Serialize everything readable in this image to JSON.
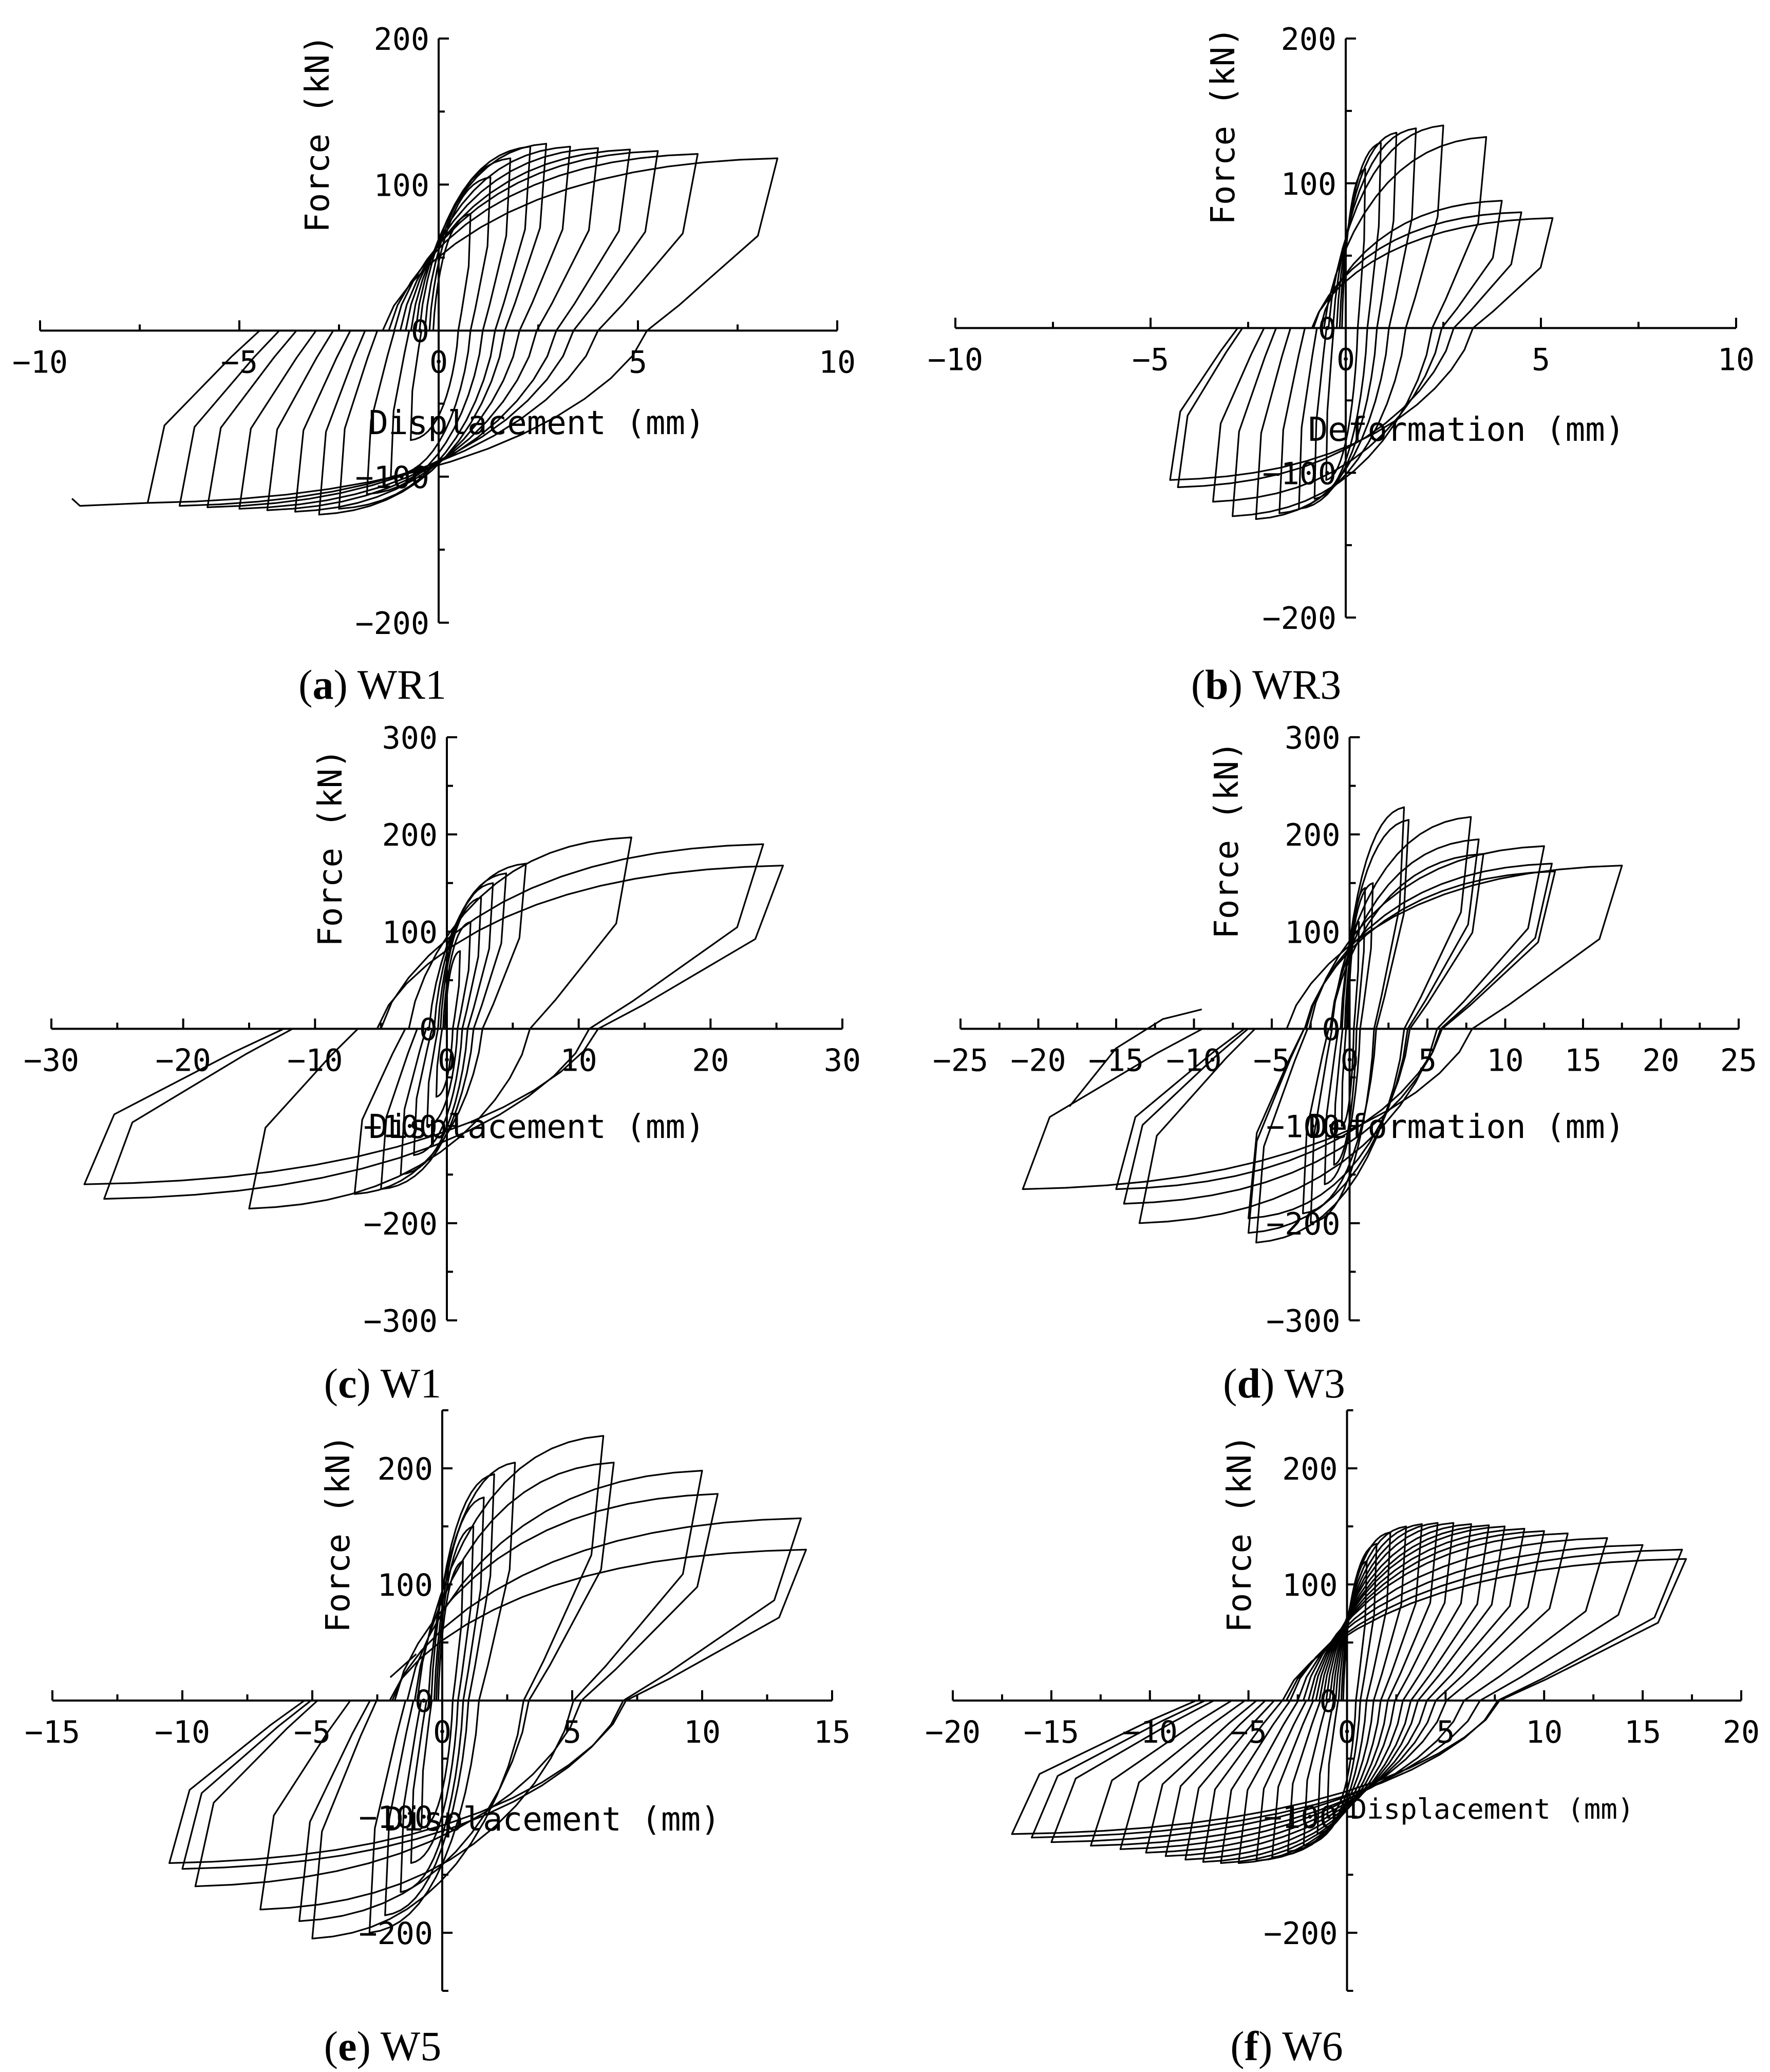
{
  "chart_data": [
    {
      "id": "a",
      "type": "line",
      "caption_letter": "a",
      "caption_name": "WR1",
      "xlabel": "Displacement (mm)",
      "ylabel": "Force (kN)",
      "xlim": [
        -10,
        10
      ],
      "ylim": [
        -200,
        200
      ],
      "xticks": [
        -10,
        -5,
        0,
        5,
        10
      ],
      "yticks": [
        -200,
        -100,
        0,
        100,
        200
      ],
      "xtick_labels": [
        "−10",
        "−5",
        "0",
        "5",
        "10"
      ],
      "ytick_labels": [
        "−200",
        "−100",
        "0",
        "100",
        "200"
      ],
      "cycles": [
        {
          "max_disp": 0.8,
          "max_force": 80,
          "min_disp": -0.7,
          "min_force": -75
        },
        {
          "max_disp": 1.3,
          "max_force": 105,
          "min_disp": -1.2,
          "min_force": -100
        },
        {
          "max_disp": 1.8,
          "max_force": 118,
          "min_disp": -1.8,
          "min_force": -112
        },
        {
          "max_disp": 2.3,
          "max_force": 126,
          "min_disp": -2.5,
          "min_force": -122
        },
        {
          "max_disp": 2.7,
          "max_force": 128,
          "min_disp": -3.0,
          "min_force": -126
        },
        {
          "max_disp": 3.3,
          "max_force": 126,
          "min_disp": -3.6,
          "min_force": -124
        },
        {
          "max_disp": 4.0,
          "max_force": 125,
          "min_disp": -4.3,
          "min_force": -123
        },
        {
          "max_disp": 4.8,
          "max_force": 124,
          "min_disp": -5.0,
          "min_force": -122
        },
        {
          "max_disp": 5.5,
          "max_force": 123,
          "min_disp": -5.8,
          "min_force": -121
        },
        {
          "max_disp": 6.5,
          "max_force": 121,
          "min_disp": -6.5,
          "min_force": -120
        },
        {
          "max_disp": 8.5,
          "max_force": 118,
          "min_disp": -7.3,
          "min_force": -118
        }
      ],
      "tail": [
        [
          -7.3,
          -118
        ],
        [
          -9.0,
          -120
        ],
        [
          -9.2,
          -115
        ]
      ]
    },
    {
      "id": "b",
      "type": "line",
      "caption_letter": "b",
      "caption_name": "WR3",
      "xlabel": "Deformation (mm)",
      "ylabel": "Force (kN)",
      "xlim": [
        -10,
        10
      ],
      "ylim": [
        -200,
        200
      ],
      "xticks": [
        -10,
        -5,
        0,
        5,
        10
      ],
      "yticks": [
        -200,
        -100,
        0,
        100,
        200
      ],
      "xtick_labels": [
        "−10",
        "−5",
        "0",
        "5",
        "10"
      ],
      "ytick_labels": [
        "−200",
        "−100",
        "0",
        "100",
        "200"
      ],
      "cycles": [
        {
          "max_disp": 0.5,
          "max_force": 110,
          "min_disp": -0.5,
          "min_force": -105
        },
        {
          "max_disp": 0.9,
          "max_force": 128,
          "min_disp": -0.8,
          "min_force": -118
        },
        {
          "max_disp": 1.3,
          "max_force": 135,
          "min_disp": -1.2,
          "min_force": -125
        },
        {
          "max_disp": 1.8,
          "max_force": 138,
          "min_disp": -1.7,
          "min_force": -128
        },
        {
          "max_disp": 2.5,
          "max_force": 140,
          "min_disp": -2.3,
          "min_force": -132
        },
        {
          "max_disp": 3.6,
          "max_force": 132,
          "min_disp": -2.9,
          "min_force": -130
        },
        {
          "max_disp": 4.0,
          "max_force": 88,
          "min_disp": -3.4,
          "min_force": -120
        },
        {
          "max_disp": 4.5,
          "max_force": 80,
          "min_disp": -4.3,
          "min_force": -110
        },
        {
          "max_disp": 5.3,
          "max_force": 76,
          "min_disp": -4.5,
          "min_force": -105
        }
      ],
      "tail": []
    },
    {
      "id": "c",
      "type": "line",
      "caption_letter": "c",
      "caption_name": "W1",
      "xlabel": "Displacement (mm)",
      "ylabel": "Force (kN)",
      "xlim": [
        -30,
        30
      ],
      "ylim": [
        -300,
        300
      ],
      "xticks": [
        -30,
        -20,
        -10,
        0,
        10,
        20,
        30
      ],
      "yticks": [
        -300,
        -200,
        -100,
        0,
        100,
        200,
        300
      ],
      "xtick_labels": [
        "−30",
        "−20",
        "−10",
        "0",
        "10",
        "20",
        "30"
      ],
      "ytick_labels": [
        "−300",
        "−200",
        "−100",
        "0",
        "100",
        "200",
        "300"
      ],
      "cycles": [
        {
          "max_disp": 1.0,
          "max_force": 80,
          "min_disp": -0.8,
          "min_force": -70
        },
        {
          "max_disp": 1.8,
          "max_force": 110,
          "min_disp": -1.5,
          "min_force": -100
        },
        {
          "max_disp": 2.6,
          "max_force": 135,
          "min_disp": -2.5,
          "min_force": -130
        },
        {
          "max_disp": 3.5,
          "max_force": 150,
          "min_disp": -3.5,
          "min_force": -150
        },
        {
          "max_disp": 4.5,
          "max_force": 160,
          "min_disp": -5.0,
          "min_force": -165
        },
        {
          "max_disp": 6.0,
          "max_force": 170,
          "min_disp": -7.0,
          "min_force": -170
        },
        {
          "max_disp": 14.0,
          "max_force": 197,
          "min_disp": -15.0,
          "min_force": -185
        },
        {
          "max_disp": 24.0,
          "max_force": 190,
          "min_disp": -26.0,
          "min_force": -175
        },
        {
          "max_disp": 25.5,
          "max_force": 168,
          "min_disp": -27.5,
          "min_force": -160
        }
      ],
      "tail": []
    },
    {
      "id": "d",
      "type": "line",
      "caption_letter": "d",
      "caption_name": "W3",
      "xlabel": "Deformation (mm)",
      "ylabel": "Force (kN)",
      "xlim": [
        -25,
        25
      ],
      "ylim": [
        -300,
        300
      ],
      "xticks": [
        -25,
        -20,
        -15,
        -10,
        -5,
        0,
        5,
        10,
        15,
        20,
        25
      ],
      "yticks": [
        -300,
        -200,
        -100,
        0,
        100,
        200,
        300
      ],
      "xtick_labels": [
        "−25",
        "−20",
        "−15",
        "−10",
        "−5",
        "0",
        "5",
        "10",
        "15",
        "20",
        "25"
      ],
      "ytick_labels": [
        "−300",
        "−200",
        "−100",
        "0",
        "100",
        "200",
        "300"
      ],
      "cycles": [
        {
          "max_disp": 0.6,
          "max_force": 110,
          "min_disp": -0.5,
          "min_force": -100
        },
        {
          "max_disp": 1.0,
          "max_force": 145,
          "min_disp": -1.0,
          "min_force": -140
        },
        {
          "max_disp": 1.5,
          "max_force": 150,
          "min_disp": -1.6,
          "min_force": -160
        },
        {
          "max_disp": 3.5,
          "max_force": 228,
          "min_disp": -2.5,
          "min_force": -200
        },
        {
          "max_disp": 3.8,
          "max_force": 215,
          "min_disp": -3.0,
          "min_force": -190
        },
        {
          "max_disp": 7.8,
          "max_force": 218,
          "min_disp": -6.0,
          "min_force": -220
        },
        {
          "max_disp": 8.3,
          "max_force": 195,
          "min_disp": -6.5,
          "min_force": -210
        },
        {
          "max_disp": 8.6,
          "max_force": 180,
          "min_disp": -6.5,
          "min_force": -195
        },
        {
          "max_disp": 12.5,
          "max_force": 188,
          "min_disp": -13.5,
          "min_force": -200
        },
        {
          "max_disp": 13.0,
          "max_force": 170,
          "min_disp": -14.5,
          "min_force": -180
        },
        {
          "max_disp": 13.2,
          "max_force": 162,
          "min_disp": -15.0,
          "min_force": -165
        },
        {
          "max_disp": 17.5,
          "max_force": 168,
          "min_disp": -21.0,
          "min_force": -165
        }
      ],
      "tail": [
        [
          -18.0,
          -80
        ],
        [
          -15.0,
          -20
        ],
        [
          -12.0,
          10
        ],
        [
          -9.5,
          20
        ]
      ]
    },
    {
      "id": "e",
      "type": "line",
      "caption_letter": "e",
      "caption_name": "W5",
      "xlabel": "Displacement (mm)",
      "ylabel": "Force (kN)",
      "xlim": [
        -15,
        15
      ],
      "ylim": [
        -250,
        250
      ],
      "xticks": [
        -15,
        -10,
        -5,
        0,
        5,
        10,
        15
      ],
      "yticks": [
        -200,
        -100,
        0,
        100,
        200
      ],
      "xtick_labels": [
        "−15",
        "−10",
        "−5",
        "0",
        "5",
        "10",
        "15"
      ],
      "ytick_labels": [
        "−200",
        "−100",
        "0",
        "100",
        "200"
      ],
      "cycles": [
        {
          "max_disp": 0.8,
          "max_force": 120,
          "min_disp": -0.8,
          "min_force": -110
        },
        {
          "max_disp": 1.2,
          "max_force": 150,
          "min_disp": -1.2,
          "min_force": -140
        },
        {
          "max_disp": 1.6,
          "max_force": 175,
          "min_disp": -1.6,
          "min_force": -165
        },
        {
          "max_disp": 2.0,
          "max_force": 195,
          "min_disp": -2.2,
          "min_force": -185
        },
        {
          "max_disp": 2.8,
          "max_force": 205,
          "min_disp": -2.8,
          "min_force": -200
        },
        {
          "max_disp": 6.2,
          "max_force": 228,
          "min_disp": -5.0,
          "min_force": -205
        },
        {
          "max_disp": 6.6,
          "max_force": 205,
          "min_disp": -5.5,
          "min_force": -190
        },
        {
          "max_disp": 10.0,
          "max_force": 198,
          "min_disp": -7.0,
          "min_force": -180
        },
        {
          "max_disp": 10.6,
          "max_force": 178,
          "min_disp": -9.5,
          "min_force": -160
        },
        {
          "max_disp": 13.8,
          "max_force": 157,
          "min_disp": -10.0,
          "min_force": -145
        },
        {
          "max_disp": 14.0,
          "max_force": 130,
          "min_disp": -10.5,
          "min_force": -140
        }
      ],
      "tail": [
        [
          -2.0,
          20
        ],
        [
          -1.0,
          40
        ]
      ]
    },
    {
      "id": "f",
      "type": "line",
      "caption_letter": "f",
      "caption_name": "W6",
      "xlabel": "Displacement (mm)",
      "ylabel": "Force (kN)",
      "xlim": [
        -20,
        20
      ],
      "ylim": [
        -250,
        250
      ],
      "xticks": [
        -20,
        -15,
        -10,
        -5,
        0,
        5,
        10,
        15,
        20
      ],
      "yticks": [
        -200,
        -100,
        0,
        100,
        200
      ],
      "xtick_labels": [
        "−20",
        "−15",
        "−10",
        "−5",
        "0",
        "5",
        "10",
        "15",
        "20"
      ],
      "ytick_labels": [
        "−200",
        "−100",
        "0",
        "100",
        "200"
      ],
      "cycles": [
        {
          "max_disp": 1.0,
          "max_force": 120,
          "min_disp": -1.0,
          "min_force": -100
        },
        {
          "max_disp": 1.5,
          "max_force": 135,
          "min_disp": -1.5,
          "min_force": -115
        },
        {
          "max_disp": 2.2,
          "max_force": 145,
          "min_disp": -2.2,
          "min_force": -125
        },
        {
          "max_disp": 3.0,
          "max_force": 150,
          "min_disp": -3.0,
          "min_force": -130
        },
        {
          "max_disp": 3.8,
          "max_force": 152,
          "min_disp": -3.8,
          "min_force": -135
        },
        {
          "max_disp": 4.6,
          "max_force": 153,
          "min_disp": -4.6,
          "min_force": -138
        },
        {
          "max_disp": 5.4,
          "max_force": 153,
          "min_disp": -5.5,
          "min_force": -140
        },
        {
          "max_disp": 6.3,
          "max_force": 152,
          "min_disp": -6.4,
          "min_force": -140
        },
        {
          "max_disp": 7.2,
          "max_force": 151,
          "min_disp": -7.3,
          "min_force": -139
        },
        {
          "max_disp": 8.0,
          "max_force": 150,
          "min_disp": -8.2,
          "min_force": -137
        },
        {
          "max_disp": 9.0,
          "max_force": 148,
          "min_disp": -9.2,
          "min_force": -134
        },
        {
          "max_disp": 10.0,
          "max_force": 146,
          "min_disp": -10.2,
          "min_force": -131
        },
        {
          "max_disp": 11.2,
          "max_force": 144,
          "min_disp": -11.5,
          "min_force": -128
        },
        {
          "max_disp": 13.2,
          "max_force": 140,
          "min_disp": -13.0,
          "min_force": -125
        },
        {
          "max_disp": 15.0,
          "max_force": 134,
          "min_disp": -15.0,
          "min_force": -122
        },
        {
          "max_disp": 17.0,
          "max_force": 130,
          "min_disp": -16.0,
          "min_force": -118
        },
        {
          "max_disp": 17.2,
          "max_force": 122,
          "min_disp": -17.0,
          "min_force": -115
        }
      ],
      "tail": []
    }
  ]
}
